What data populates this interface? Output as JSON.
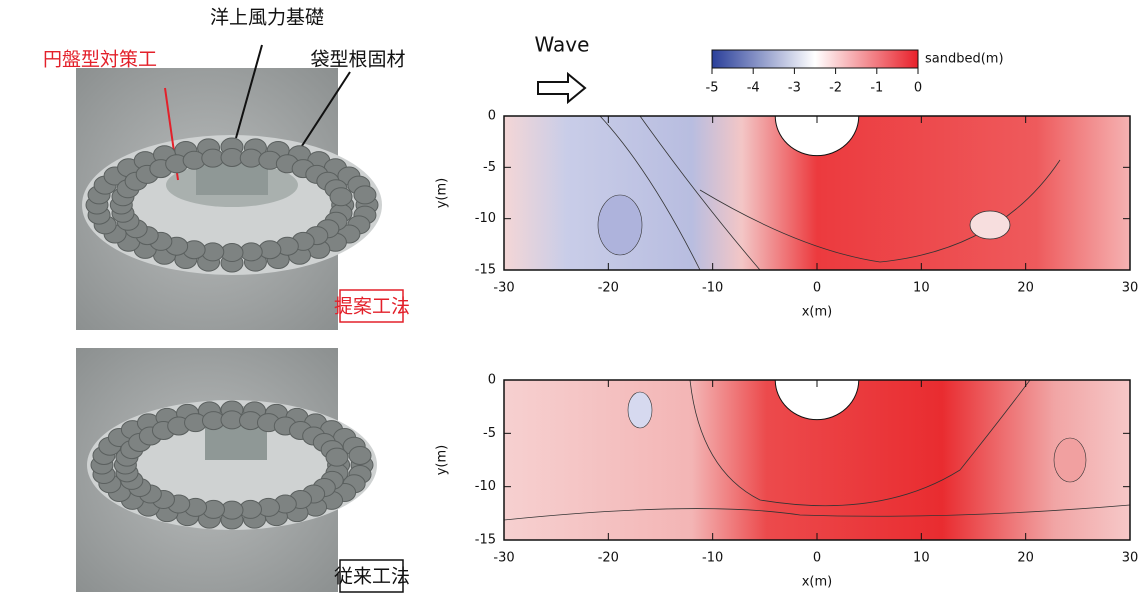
{
  "annotations": {
    "foundation": "洋上風力基礎",
    "disk": "円盤型対策工",
    "bag": "袋型根固材"
  },
  "wave": "Wave",
  "colorbar": {
    "label": "sandbed(m)",
    "lim": [
      -5,
      0
    ],
    "ticks": [
      -5,
      -4,
      -3,
      -2,
      -1,
      0
    ]
  },
  "plots": [
    {
      "method": "提案工法",
      "xlabel": "x(m)",
      "ylabel": "y(m)",
      "xlim": [
        -30,
        30
      ],
      "ylim": [
        -15,
        0
      ],
      "xticks": [
        -30,
        -20,
        -10,
        0,
        10,
        20,
        30
      ],
      "yticks": [
        0,
        -5,
        -10,
        -15
      ]
    },
    {
      "method": "従来工法",
      "xlabel": "x(m)",
      "ylabel": "y(m)",
      "xlim": [
        -30,
        30
      ],
      "ylim": [
        -15,
        0
      ],
      "xticks": [
        -30,
        -20,
        -10,
        0,
        10,
        20,
        30
      ],
      "yticks": [
        0,
        -5,
        -10,
        -15
      ]
    }
  ]
}
